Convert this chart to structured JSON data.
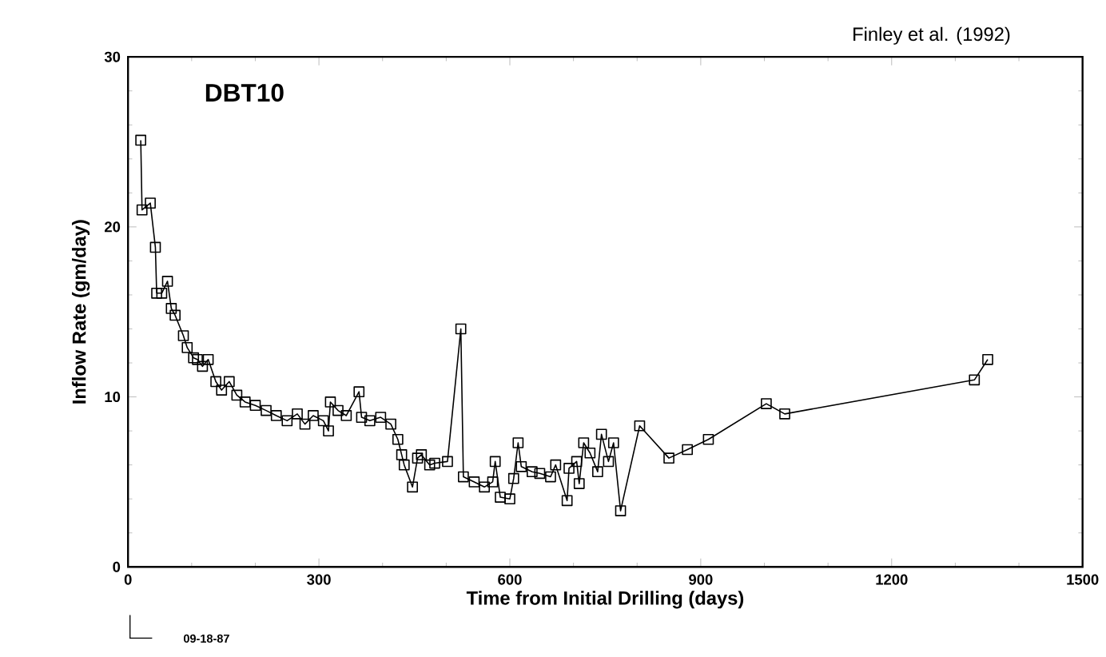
{
  "chart_data": {
    "type": "line",
    "xlabel": "Time from Initial Drilling (days)",
    "ylabel": "Inflow Rate (gm/day)",
    "annotations": [
      "Finley et al. (1992)",
      "DBT10",
      "09-18-87"
    ],
    "xlim": [
      0,
      1500
    ],
    "ylim": [
      0,
      30
    ],
    "xticks": [
      0,
      300,
      600,
      900,
      1200,
      1500
    ],
    "yticks": [
      0,
      10,
      20,
      30
    ],
    "marker": "square",
    "line_style": "solid",
    "series": [
      {
        "color": "#000000",
        "x": [
          20,
          22,
          35,
          43,
          45,
          53,
          62,
          68,
          74,
          87,
          93,
          103,
          109,
          117,
          126,
          138,
          147,
          159,
          171,
          184,
          200,
          217,
          233,
          250,
          266,
          278,
          291,
          307,
          315,
          318,
          330,
          343,
          363,
          367,
          380,
          397,
          413,
          424,
          430,
          434,
          447,
          455,
          461,
          474,
          482,
          502,
          523,
          527,
          544,
          560,
          573,
          577,
          585,
          600,
          606,
          613,
          618,
          635,
          647,
          664,
          672,
          690,
          693,
          705,
          709,
          716,
          726,
          738,
          744,
          755,
          763,
          774,
          804,
          850,
          879,
          912,
          1003,
          1032,
          1330,
          1351
        ],
        "values": [
          25.1,
          21.0,
          21.4,
          18.8,
          16.1,
          16.1,
          16.8,
          15.2,
          14.8,
          13.6,
          12.9,
          12.3,
          12.2,
          11.8,
          12.2,
          10.9,
          10.4,
          10.9,
          10.1,
          9.7,
          9.5,
          9.2,
          8.9,
          8.6,
          9.0,
          8.4,
          8.9,
          8.6,
          8.0,
          9.7,
          9.2,
          8.9,
          10.3,
          8.8,
          8.6,
          8.8,
          8.4,
          7.5,
          6.6,
          6.0,
          4.7,
          6.4,
          6.6,
          6.0,
          6.1,
          6.2,
          14.0,
          5.3,
          5.0,
          4.7,
          5.0,
          6.2,
          4.1,
          4.0,
          5.2,
          7.3,
          5.9,
          5.6,
          5.5,
          5.3,
          6.0,
          3.9,
          5.8,
          6.2,
          4.9,
          7.3,
          6.7,
          5.6,
          7.8,
          6.2,
          7.3,
          3.3,
          8.3,
          6.4,
          6.9,
          7.5,
          9.6,
          9.0,
          11.0,
          12.2
        ]
      }
    ]
  }
}
